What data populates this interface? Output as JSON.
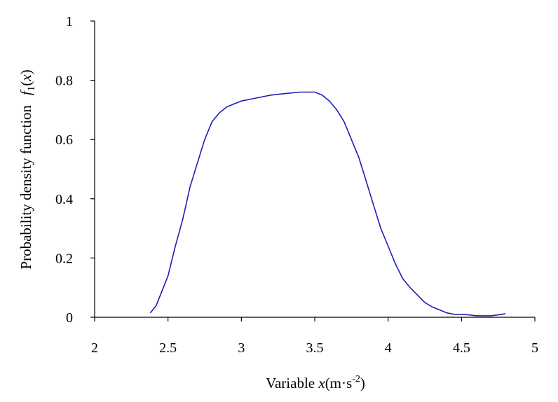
{
  "chart_data": {
    "type": "line",
    "xlabel": {
      "prefix": "Variable ",
      "var": "x",
      "units_open": "(m·s",
      "units_exp": "-2",
      "units_close": ")"
    },
    "ylabel": {
      "text": "Probability density function",
      "func": "f",
      "sub": "1",
      "arg": "x"
    },
    "xlim": [
      2,
      5
    ],
    "ylim": [
      0,
      1
    ],
    "xticks": [
      "2",
      "2.5",
      "3",
      "3.5",
      "4",
      "4.5",
      "5"
    ],
    "yticks": [
      "0",
      "0.2",
      "0.4",
      "0.6",
      "0.8",
      "1"
    ],
    "grid": false,
    "legend": "none",
    "series": [
      {
        "color": "#1f1fb4",
        "x": [
          2.38,
          2.42,
          2.46,
          2.5,
          2.55,
          2.6,
          2.65,
          2.7,
          2.75,
          2.8,
          2.85,
          2.9,
          2.95,
          3.0,
          3.05,
          3.1,
          3.2,
          3.3,
          3.4,
          3.45,
          3.5,
          3.55,
          3.6,
          3.65,
          3.7,
          3.75,
          3.8,
          3.85,
          3.9,
          3.95,
          4.0,
          4.05,
          4.1,
          4.15,
          4.2,
          4.25,
          4.3,
          4.35,
          4.4,
          4.45,
          4.5,
          4.55,
          4.6,
          4.65,
          4.7,
          4.75,
          4.8
        ],
        "y": [
          0.015,
          0.04,
          0.09,
          0.14,
          0.24,
          0.33,
          0.44,
          0.52,
          0.6,
          0.66,
          0.69,
          0.71,
          0.72,
          0.73,
          0.735,
          0.74,
          0.75,
          0.755,
          0.76,
          0.76,
          0.76,
          0.75,
          0.73,
          0.7,
          0.66,
          0.6,
          0.54,
          0.46,
          0.38,
          0.3,
          0.24,
          0.18,
          0.13,
          0.1,
          0.075,
          0.05,
          0.035,
          0.025,
          0.015,
          0.01,
          0.01,
          0.008,
          0.005,
          0.005,
          0.005,
          0.008,
          0.012
        ]
      }
    ]
  }
}
